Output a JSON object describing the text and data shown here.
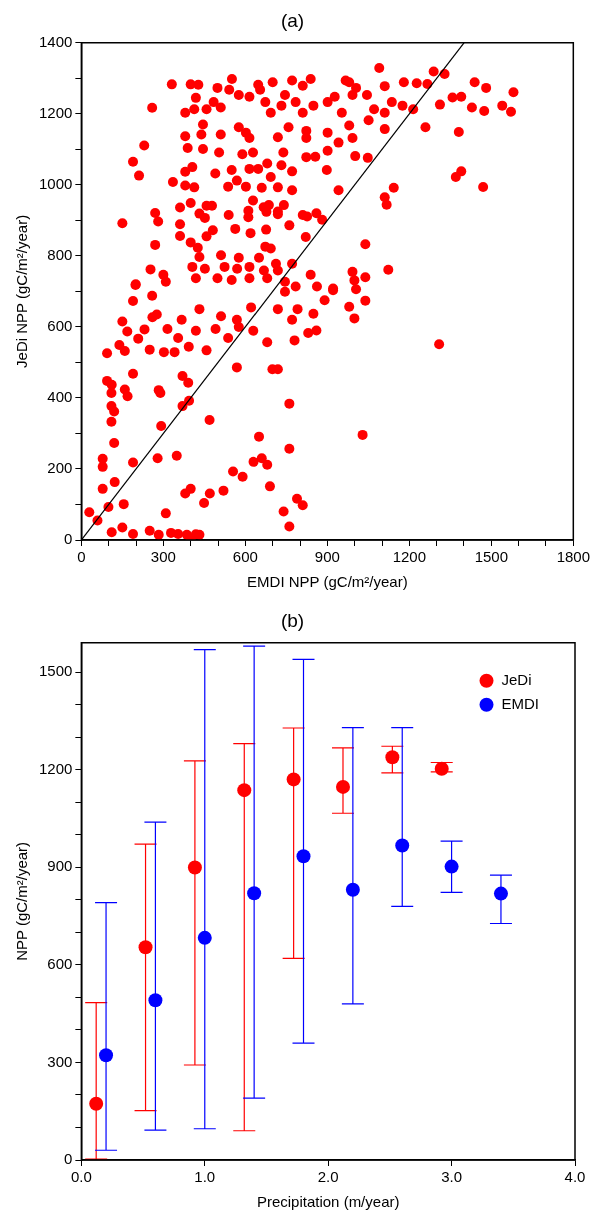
{
  "chart_data": [
    {
      "type": "scatter",
      "title": "(a)",
      "xlabel": "EMDI NPP (gC/m²/year)",
      "ylabel": "JeDi NPP (gC/m²/year)",
      "xlim": [
        0,
        1800
      ],
      "ylim": [
        0,
        1400
      ],
      "xticks": [
        0,
        {
          "value": 100,
          "label": null
        },
        {
          "value": 200,
          "label": null
        },
        300,
        {
          "value": 400,
          "label": null
        },
        {
          "value": 500,
          "label": null
        },
        600,
        {
          "value": 700,
          "label": null
        },
        {
          "value": 800,
          "label": null
        },
        900,
        {
          "value": 1000,
          "label": null
        },
        {
          "value": 1100,
          "label": null
        },
        1200,
        {
          "value": 1300,
          "label": null
        },
        {
          "value": 1400,
          "label": null
        },
        1500,
        {
          "value": 1600,
          "label": null
        },
        {
          "value": 1700,
          "label": null
        },
        1800
      ],
      "yticks": [
        0,
        {
          "value": 100,
          "label": null
        },
        200,
        {
          "value": 300,
          "label": null
        },
        400,
        {
          "value": 500,
          "label": null
        },
        600,
        {
          "value": 700,
          "label": null
        },
        800,
        {
          "value": 900,
          "label": null
        },
        1000,
        {
          "value": 1100,
          "label": null
        },
        1200,
        {
          "value": 1300,
          "label": null
        },
        1400
      ],
      "grid": false,
      "legend": false,
      "marker": "circle",
      "series": [
        {
          "color": "#ff0000",
          "x": [
            1090,
            1289,
            1329,
            1439,
            1581,
            1572,
            1481,
            1474,
            1540,
            1390,
            1358,
            1429,
            1312,
            1259,
            1381,
            1370,
            1390,
            1470,
            331,
            259,
            230,
            189,
            211,
            150,
            270,
            281,
            270,
            253,
            199,
            300,
            400,
            428,
            498,
            551,
            541,
            647,
            700,
            771,
            839,
            810,
            967,
            980,
            1005,
            1110,
            1180,
            1227,
            1266,
            419,
            380,
            413,
            458,
            484,
            510,
            576,
            615,
            654,
            673,
            693,
            745,
            784,
            810,
            849,
            901,
            927,
            953,
            992,
            1045,
            1071,
            1110,
            1136,
            1175,
            1214,
            732,
            380,
            445,
            439,
            510,
            576,
            602,
            615,
            719,
            823,
            823,
            901,
            980,
            992,
            1110,
            1051,
            758,
            389,
            445,
            504,
            589,
            628,
            739,
            901,
            941,
            1002,
            1048,
            823,
            856,
            380,
            406,
            490,
            550,
            615,
            647,
            680,
            732,
            771,
            898,
            693,
            335,
            380,
            413,
            537,
            569,
            602,
            660,
            719,
            771,
            941,
            361,
            400,
            458,
            478,
            539,
            611,
            628,
            667,
            686,
            719,
            741,
            810,
            860,
            881,
            1110,
            1143,
            1117,
            432,
            452,
            611,
            677,
            719,
            826,
            361,
            361,
            481,
            563,
            619,
            676,
            761,
            458,
            673,
            693,
            821,
            1039,
            400,
            426,
            511,
            576,
            650,
            712,
            771,
            432,
            406,
            452,
            524,
            570,
            615,
            668,
            719,
            839,
            992,
            1123,
            1039,
            999,
            419,
            498,
            550,
            615,
            680,
            745,
            784,
            862,
            921,
            309,
            198,
            189,
            94,
            150,
            168,
            139,
            159,
            208,
            231,
            259,
            260,
            276,
            250,
            302,
            341,
            315,
            354,
            367,
            393,
            419,
            432,
            458,
            491,
            511,
            537,
            569,
            576,
            621,
            629,
            680,
            719,
            745,
            771,
            791,
            780,
            830,
            860,
            849,
            890,
            921,
            980,
            999,
            1039,
            1005,
            1309,
            569,
            699,
            719,
            189,
            94,
            111,
            110,
            159,
            169,
            283,
            289,
            370,
            391,
            394,
            370,
            110,
            120,
            110,
            120,
            292,
            469,
            761,
            1029,
            650,
            761,
            349,
            279,
            78,
            78,
            189,
            122,
            78,
            555,
            590,
            630,
            660,
            680,
            690,
            380,
            400,
            470,
            520,
            449,
            99,
            155,
            29,
            59,
            309,
            740,
            789,
            810,
            761,
            111,
            150,
            189,
            250,
            283,
            328,
            354,
            386,
            419,
            432,
            400
          ],
          "values": [
            1329,
            1319,
            1312,
            1289,
            1261,
            1206,
            1273,
            1208,
            1223,
            1248,
            1246,
            1218,
            1226,
            1162,
            1149,
            1022,
            1038,
            994,
            1283,
            1217,
            1111,
            1065,
            1026,
            892,
            921,
            897,
            831,
            762,
            720,
            747,
            1283,
            1282,
            1273,
            1298,
            1268,
            1282,
            1289,
            1294,
            1298,
            1279,
            1294,
            1289,
            1273,
            1278,
            1289,
            1286,
            1284,
            1245,
            1203,
            1213,
            1213,
            1233,
            1218,
            1253,
            1248,
            1268,
            1233,
            1203,
            1253,
            1233,
            1203,
            1223,
            1233,
            1248,
            1203,
            1253,
            1253,
            1213,
            1203,
            1233,
            1223,
            1213,
            1223,
            1137,
            1170,
            1142,
            1142,
            1162,
            1147,
            1132,
            1134,
            1152,
            1132,
            1147,
            1167,
            1132,
            1157,
            1182,
            1162,
            1104,
            1101,
            1091,
            1086,
            1091,
            1091,
            1096,
            1119,
            1081,
            1076,
            1078,
            1079,
            1037,
            1050,
            1032,
            1042,
            1045,
            1045,
            1060,
            1055,
            1038,
            1042,
            1022,
            1008,
            998,
            993,
            995,
            1012,
            995,
            992,
            993,
            985,
            985,
            936,
            949,
            941,
            941,
            915,
            927,
            956,
            937,
            943,
            925,
            943,
            915,
            920,
            902,
            965,
            992,
            944,
            919,
            907,
            909,
            924,
            917,
            911,
            889,
            856,
            872,
            876,
            864,
            874,
            886,
            855,
            826,
            821,
            853,
            833,
            838,
            823,
            802,
            795,
            795,
            778,
            778,
            797,
            769,
            764,
            769,
            764,
            769,
            759,
            759,
            747,
            755,
            761,
            740,
            731,
            737,
            737,
            732,
            737,
            737,
            727,
            714,
            714,
            708,
            727,
            718,
            673,
            526,
            615,
            587,
            549,
            532,
            567,
            593,
            688,
            627,
            635,
            536,
            529,
            529,
            594,
            569,
            620,
            544,
            589,
            650,
            534,
            594,
            630,
            569,
            620,
            600,
            655,
            589,
            557,
            650,
            699,
            620,
            650,
            562,
            583,
            590,
            637,
            675,
            703,
            657,
            624,
            674,
            706,
            551,
            486,
            481,
            481,
            468,
            448,
            437,
            414,
            424,
            405,
            422,
            414,
            462,
            443,
            392,
            377,
            377,
            362,
            333,
            273,
            321,
            338,
            384,
            296,
            291,
            257,
            237,
            230,
            229,
            206,
            218,
            163,
            144,
            193,
            178,
            220,
            230,
            212,
            151,
            131,
            144,
            131,
            139,
            104,
            93,
            101,
            78,
            55,
            75,
            80,
            116,
            98,
            38,
            22,
            35,
            17,
            26,
            15,
            20,
            17,
            15,
            16,
            15,
            2
          ]
        },
        {
          "type": "line",
          "color": "#000000",
          "marker": "none",
          "x": [
            0,
            1400
          ],
          "values": [
            0,
            1400
          ]
        }
      ]
    },
    {
      "type": "scatter",
      "title": "(b)",
      "xlabel": "Precipitation (m/year)",
      "ylabel": "NPP (gC/m²/year)",
      "xlim": [
        0,
        4
      ],
      "ylim": [
        0,
        1590
      ],
      "xticks": [
        {
          "value": 0,
          "label": "0.0"
        },
        {
          "value": 1,
          "label": "1.0"
        },
        {
          "value": 2,
          "label": "2.0"
        },
        {
          "value": 3,
          "label": "3.0"
        },
        {
          "value": 4,
          "label": "4.0"
        }
      ],
      "yticks": [
        0,
        {
          "value": 100,
          "label": null
        },
        {
          "value": 200,
          "label": null
        },
        300,
        {
          "value": 400,
          "label": null
        },
        {
          "value": 500,
          "label": null
        },
        600,
        {
          "value": 700,
          "label": null
        },
        {
          "value": 800,
          "label": null
        },
        900,
        {
          "value": 1000,
          "label": null
        },
        {
          "value": 1100,
          "label": null
        },
        1200,
        {
          "value": 1300,
          "label": null
        },
        {
          "value": 1400,
          "label": null
        },
        1500
      ],
      "grid": false,
      "legend": "top right",
      "marker": "circle",
      "series": [
        {
          "name": "JeDi",
          "color": "#ff0000",
          "x": [
            0.12,
            0.52,
            0.92,
            1.32,
            1.72,
            2.12,
            2.52,
            2.92
          ],
          "values": [
            173,
            654,
            899,
            1137,
            1170,
            1147,
            1238,
            1203
          ],
          "errors": [
            [
              3,
              484
            ],
            [
              152,
              971
            ],
            [
              292,
              1227
            ],
            [
              90,
              1280
            ],
            [
              620,
              1328
            ],
            [
              1066,
              1267
            ],
            [
              1190,
              1272
            ],
            [
              1193,
              1222
            ]
          ]
        },
        {
          "name": "EMDI",
          "color": "#0000ff",
          "x": [
            0.2,
            0.6,
            1.0,
            1.4,
            1.8,
            2.2,
            2.6,
            3.0,
            3.4
          ],
          "values": [
            322,
            491,
            683,
            820,
            934,
            831,
            967,
            902,
            819
          ],
          "errors": [
            [
              30,
              791
            ],
            [
              92,
              1039
            ],
            [
              96,
              1569
            ],
            [
              190,
              1580
            ],
            [
              359,
              1539
            ],
            [
              480,
              1329
            ],
            [
              780,
              1329
            ],
            [
              823,
              980
            ],
            [
              727,
              876
            ]
          ]
        }
      ]
    }
  ]
}
